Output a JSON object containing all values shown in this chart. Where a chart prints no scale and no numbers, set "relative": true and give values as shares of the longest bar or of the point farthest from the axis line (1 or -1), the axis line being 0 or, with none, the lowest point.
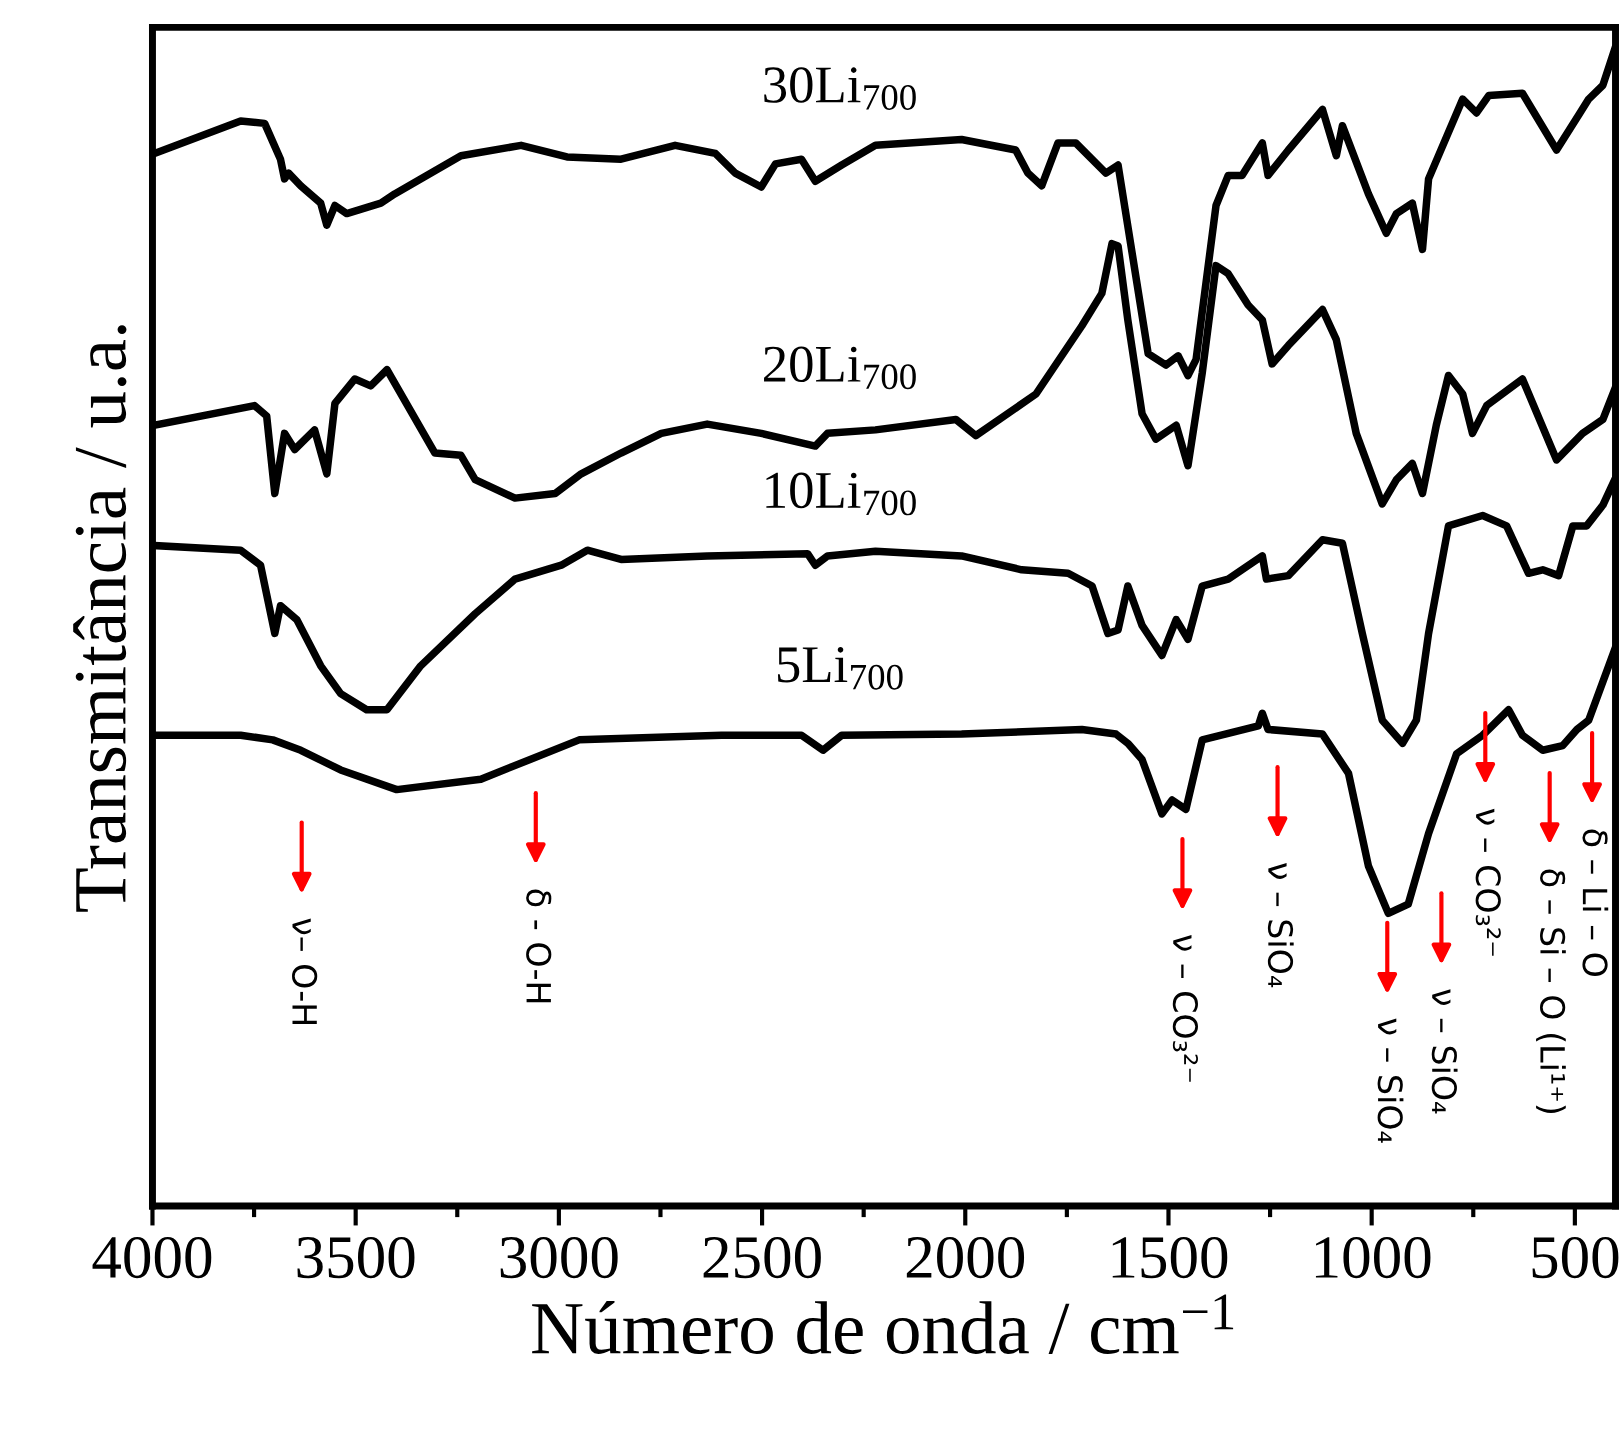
{
  "chart_data": {
    "type": "line",
    "relative": true,
    "xlabel": "Número de onda / cm$^{−1}$",
    "ylabel": "Transmitância / u.a.",
    "xlim": [
      4000,
      400
    ],
    "xticks": [
      4000,
      {
        "value": 3750,
        "label": null
      },
      3500,
      {
        "value": 3250,
        "label": null
      },
      3000,
      {
        "value": 2750,
        "label": null
      },
      2500,
      {
        "value": 2250,
        "label": null
      },
      2000,
      {
        "value": 1750,
        "label": null
      },
      1500,
      {
        "value": 1250,
        "label": null
      },
      1000,
      {
        "value": 750,
        "label": null
      },
      500
    ],
    "grid": false,
    "legend": false,
    "marker": "none",
    "line_style": "solid",
    "series": [
      {
        "name": "30Li$_{700}$",
        "color": "#000000",
        "x": [
          3995,
          3783,
          3724,
          3685,
          3675,
          3665,
          3635,
          3586,
          3571,
          3551,
          3522,
          3438,
          3404,
          3241,
          3093,
          2980,
          2847,
          2714,
          2615,
          2566,
          2502,
          2467,
          2403,
          2369,
          2304,
          2221,
          2009,
          1876,
          1846,
          1812,
          1772,
          1728,
          1654,
          1624,
          1550,
          1506,
          1476,
          1452,
          1432,
          1383,
          1353,
          1319,
          1269,
          1255,
          1205,
          1121,
          1087,
          1072,
          1008,
          964,
          939,
          900,
          875,
          860,
          776,
          742,
          712,
          629,
          545,
          491,
          466,
          431,
          402
        ],
        "values": [
          0.91,
          0.938,
          0.936,
          0.905,
          0.888,
          0.893,
          0.882,
          0.867,
          0.848,
          0.865,
          0.858,
          0.867,
          0.875,
          0.908,
          0.917,
          0.907,
          0.905,
          0.917,
          0.91,
          0.893,
          0.881,
          0.901,
          0.905,
          0.886,
          0.9,
          0.917,
          0.922,
          0.913,
          0.893,
          0.882,
          0.919,
          0.919,
          0.893,
          0.9,
          0.737,
          0.727,
          0.735,
          0.718,
          0.732,
          0.865,
          0.891,
          0.891,
          0.919,
          0.891,
          0.913,
          0.948,
          0.908,
          0.934,
          0.875,
          0.841,
          0.858,
          0.867,
          0.827,
          0.888,
          0.957,
          0.945,
          0.96,
          0.962,
          0.913,
          0.943,
          0.957,
          0.969,
          1.0
        ]
      },
      {
        "name": "20Li$_{700}$",
        "color": "#000000",
        "x": [
          3995,
          3749,
          3719,
          3699,
          3675,
          3650,
          3601,
          3571,
          3551,
          3502,
          3463,
          3423,
          3305,
          3241,
          3206,
          3108,
          3009,
          2945,
          2847,
          2748,
          2635,
          2502,
          2369,
          2339,
          2221,
          2023,
          1974,
          1826,
          1713,
          1664,
          1639,
          1624,
          1600,
          1565,
          1531,
          1481,
          1452,
          1417,
          1383,
          1353,
          1304,
          1269,
          1245,
          1205,
          1121,
          1087,
          1038,
          974,
          939,
          900,
          875,
          841,
          811,
          776,
          752,
          717,
          629,
          545,
          481,
          431,
          402
        ],
        "values": [
          0.675,
          0.692,
          0.683,
          0.616,
          0.668,
          0.654,
          0.671,
          0.633,
          0.694,
          0.715,
          0.709,
          0.723,
          0.651,
          0.649,
          0.628,
          0.612,
          0.616,
          0.633,
          0.651,
          0.668,
          0.676,
          0.668,
          0.657,
          0.668,
          0.671,
          0.68,
          0.666,
          0.702,
          0.761,
          0.789,
          0.832,
          0.83,
          0.766,
          0.685,
          0.663,
          0.675,
          0.64,
          0.72,
          0.813,
          0.806,
          0.779,
          0.766,
          0.728,
          0.744,
          0.775,
          0.749,
          0.668,
          0.607,
          0.628,
          0.642,
          0.616,
          0.675,
          0.718,
          0.702,
          0.668,
          0.692,
          0.715,
          0.645,
          0.668,
          0.68,
          0.706
        ]
      },
      {
        "name": "10Li$_{700}$",
        "color": "#000000",
        "x": [
          3995,
          3783,
          3734,
          3699,
          3685,
          3645,
          3586,
          3537,
          3473,
          3423,
          3340,
          3206,
          3108,
          2994,
          2930,
          2847,
          2635,
          2388,
          2369,
          2339,
          2221,
          2009,
          1861,
          1747,
          1688,
          1649,
          1624,
          1600,
          1565,
          1516,
          1481,
          1452,
          1417,
          1353,
          1269,
          1259,
          1205,
          1121,
          1072,
          1023,
          974,
          924,
          890,
          860,
          811,
          727,
          668,
          614,
          579,
          540,
          505,
          471,
          431,
          402
        ],
        "values": [
          0.571,
          0.567,
          0.554,
          0.495,
          0.519,
          0.507,
          0.467,
          0.443,
          0.429,
          0.429,
          0.467,
          0.512,
          0.542,
          0.554,
          0.567,
          0.559,
          0.562,
          0.564,
          0.554,
          0.562,
          0.566,
          0.562,
          0.55,
          0.547,
          0.536,
          0.495,
          0.498,
          0.536,
          0.502,
          0.476,
          0.507,
          0.49,
          0.536,
          0.542,
          0.562,
          0.542,
          0.545,
          0.576,
          0.573,
          0.495,
          0.42,
          0.4,
          0.42,
          0.495,
          0.588,
          0.597,
          0.588,
          0.547,
          0.55,
          0.545,
          0.588,
          0.588,
          0.606,
          0.628
        ]
      },
      {
        "name": "5Li$_{700}$",
        "color": "#000000",
        "x": [
          3995,
          3783,
          3704,
          3635,
          3537,
          3399,
          3192,
          2950,
          2600,
          2403,
          2350,
          2304,
          2009,
          1713,
          1629,
          1600,
          1565,
          1516,
          1491,
          1457,
          1417,
          1279,
          1269,
          1255,
          1121,
          1057,
          1008,
          959,
          910,
          860,
          791,
          727,
          663,
          629,
          579,
          530,
          495,
          466,
          402
        ],
        "values": [
          0.407,
          0.407,
          0.403,
          0.394,
          0.377,
          0.36,
          0.369,
          0.403,
          0.407,
          0.407,
          0.394,
          0.407,
          0.408,
          0.412,
          0.408,
          0.4,
          0.386,
          0.339,
          0.351,
          0.343,
          0.403,
          0.415,
          0.426,
          0.412,
          0.408,
          0.374,
          0.294,
          0.253,
          0.261,
          0.322,
          0.391,
          0.407,
          0.429,
          0.407,
          0.394,
          0.398,
          0.412,
          0.42,
          0.481
        ]
      }
    ],
    "annotations": [
      "ν– O-H",
      "δ - O-H",
      "ν – CO₃²⁻",
      "ν – SiO₄",
      "ν – SiO₄",
      "ν – SiO₄",
      "ν – CO₃²⁻",
      "δ – Si – O (Li¹⁺)",
      "δ – Li – O"
    ]
  }
}
